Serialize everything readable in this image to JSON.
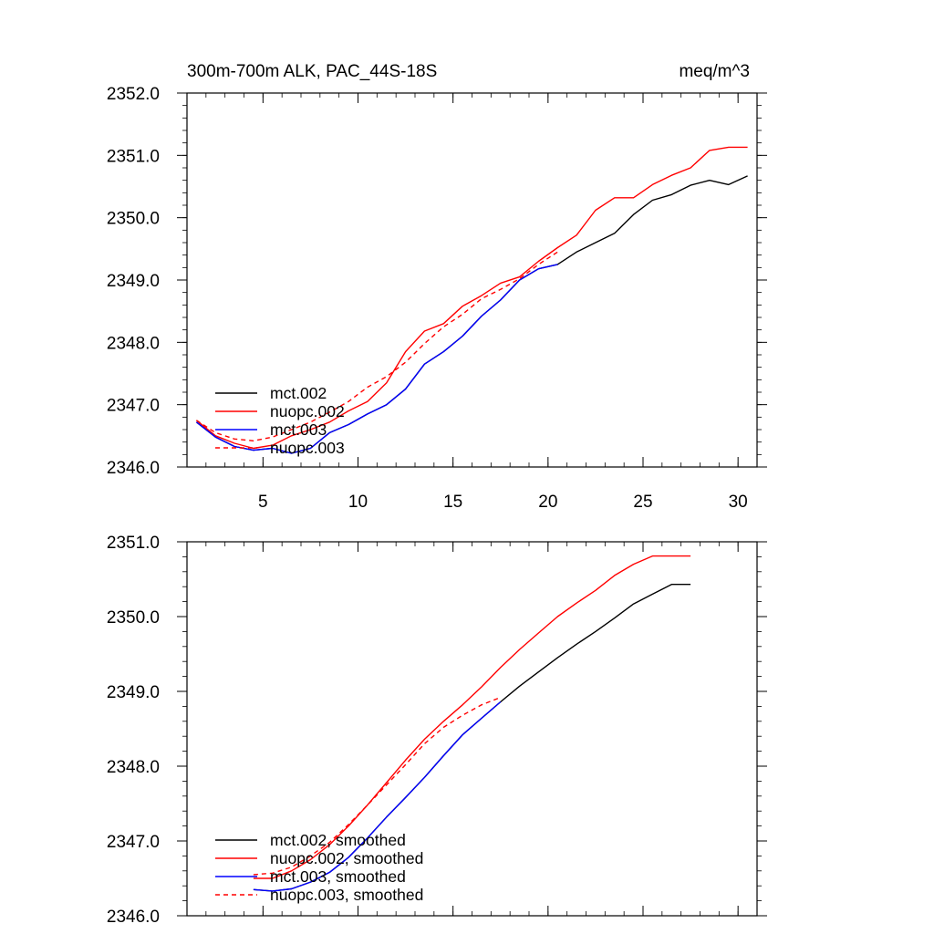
{
  "colors": {
    "mct_002": "#000000",
    "nuopc_002": "#ff0000",
    "mct_003": "#0000ff",
    "nuopc_003": "#ff0000"
  },
  "chart_data": [
    {
      "type": "line",
      "title": "300m-700m ALK, PAC_44S-18S",
      "units": "meq/m^3",
      "xlim": [
        1,
        31
      ],
      "ylim": [
        2346.0,
        2352.0
      ],
      "x_ticks": [
        5,
        10,
        15,
        20,
        25,
        30
      ],
      "x_tick_labels": [
        "5",
        "10",
        "15",
        "20",
        "25",
        "30"
      ],
      "y_ticks": [
        2346.0,
        2347.0,
        2348.0,
        2349.0,
        2350.0,
        2351.0,
        2352.0
      ],
      "y_tick_labels": [
        "2346.0",
        "2347.0",
        "2348.0",
        "2349.0",
        "2350.0",
        "2351.0",
        "2352.0"
      ],
      "legend_position": "bottom-left",
      "series": [
        {
          "name": "mct.002",
          "dashed": false,
          "x": [
            1.5,
            2.5,
            3.5,
            4.5,
            5.5,
            6.5,
            7.5,
            8.5,
            9.5,
            10.5,
            11.5,
            12.5,
            13.5,
            14.5,
            15.5,
            16.5,
            17.5,
            18.5,
            19.5,
            20.5,
            21.5,
            22.5,
            23.5,
            24.5,
            25.5,
            26.5,
            27.5,
            28.5,
            29.5,
            30.5
          ],
          "y": [
            2346.72,
            2346.48,
            2346.33,
            2346.27,
            2346.3,
            2346.22,
            2346.3,
            2346.55,
            2346.68,
            2346.85,
            2347.0,
            2347.25,
            2347.65,
            2347.85,
            2348.1,
            2348.42,
            2348.68,
            2349.0,
            2349.18,
            2349.25,
            2349.45,
            2349.6,
            2349.75,
            2350.05,
            2350.28,
            2350.37,
            2350.52,
            2350.6,
            2350.53,
            2350.67
          ]
        },
        {
          "name": "nuopc.002",
          "dashed": false,
          "x": [
            1.5,
            2.5,
            3.5,
            4.5,
            5.5,
            6.5,
            7.5,
            8.5,
            9.5,
            10.5,
            11.5,
            12.5,
            13.5,
            14.5,
            15.5,
            16.5,
            17.5,
            18.5,
            19.5,
            20.5,
            21.5,
            22.5,
            23.5,
            24.5,
            25.5,
            26.5,
            27.5,
            28.5,
            29.5,
            30.5
          ],
          "y": [
            2346.75,
            2346.5,
            2346.38,
            2346.3,
            2346.35,
            2346.5,
            2346.6,
            2346.72,
            2346.9,
            2347.05,
            2347.35,
            2347.85,
            2348.18,
            2348.3,
            2348.58,
            2348.75,
            2348.95,
            2349.05,
            2349.3,
            2349.52,
            2349.72,
            2350.12,
            2350.32,
            2350.32,
            2350.53,
            2350.68,
            2350.8,
            2351.08,
            2351.13,
            2351.13
          ]
        },
        {
          "name": "mct.003",
          "dashed": false,
          "x": [
            1.5,
            2.5,
            3.5,
            4.5,
            5.5,
            6.5,
            7.5,
            8.5,
            9.5,
            10.5,
            11.5,
            12.5,
            13.5,
            14.5,
            15.5,
            16.5,
            17.5,
            18.5,
            19.5,
            20.5
          ],
          "y": [
            2346.72,
            2346.48,
            2346.33,
            2346.27,
            2346.3,
            2346.22,
            2346.3,
            2346.55,
            2346.68,
            2346.85,
            2347.0,
            2347.25,
            2347.65,
            2347.85,
            2348.1,
            2348.42,
            2348.68,
            2349.0,
            2349.18,
            2349.25
          ]
        },
        {
          "name": "nuopc.003",
          "dashed": true,
          "x": [
            1.5,
            2.5,
            3.5,
            4.5,
            5.5,
            6.5,
            7.5,
            8.5,
            9.5,
            10.5,
            11.5,
            12.5,
            13.5,
            14.5,
            15.5,
            16.5,
            17.5,
            18.5,
            19.5,
            20.5
          ],
          "y": [
            2346.75,
            2346.55,
            2346.45,
            2346.42,
            2346.48,
            2346.6,
            2346.72,
            2346.88,
            2347.05,
            2347.28,
            2347.45,
            2347.68,
            2347.98,
            2348.25,
            2348.45,
            2348.7,
            2348.85,
            2349.02,
            2349.25,
            2349.45
          ]
        }
      ]
    },
    {
      "type": "line",
      "xlim": [
        1,
        31
      ],
      "ylim": [
        2346.0,
        2351.0
      ],
      "x_ticks": [
        5,
        10,
        15,
        20,
        25,
        30
      ],
      "y_ticks": [
        2346.0,
        2347.0,
        2348.0,
        2349.0,
        2350.0,
        2351.0
      ],
      "y_tick_labels": [
        "2346.0",
        "2347.0",
        "2348.0",
        "2349.0",
        "2350.0",
        "2351.0"
      ],
      "legend_position": "bottom-left",
      "series": [
        {
          "name": "mct.002, smoothed",
          "dashed": false,
          "x": [
            4.5,
            5.5,
            6.5,
            7.5,
            8.5,
            9.5,
            10.5,
            11.5,
            12.5,
            13.5,
            14.5,
            15.5,
            16.5,
            17.5,
            18.5,
            19.5,
            20.5,
            21.5,
            22.5,
            23.5,
            24.5,
            25.5,
            26.5,
            27.5
          ],
          "y": [
            2346.35,
            2346.33,
            2346.36,
            2346.45,
            2346.58,
            2346.78,
            2347.04,
            2347.32,
            2347.58,
            2347.85,
            2348.14,
            2348.42,
            2348.64,
            2348.86,
            2349.07,
            2349.26,
            2349.45,
            2349.63,
            2349.8,
            2349.98,
            2350.17,
            2350.3,
            2350.43,
            2350.43
          ]
        },
        {
          "name": "nuopc.002, smoothed",
          "dashed": false,
          "x": [
            4.5,
            5.5,
            6.5,
            7.5,
            8.5,
            9.5,
            10.5,
            11.5,
            12.5,
            13.5,
            14.5,
            15.5,
            16.5,
            17.5,
            18.5,
            19.5,
            20.5,
            21.5,
            22.5,
            23.5,
            24.5,
            25.5,
            26.5,
            27.5
          ],
          "y": [
            2346.5,
            2346.5,
            2346.6,
            2346.75,
            2346.95,
            2347.2,
            2347.48,
            2347.78,
            2348.08,
            2348.36,
            2348.6,
            2348.82,
            2349.06,
            2349.32,
            2349.56,
            2349.78,
            2350.0,
            2350.18,
            2350.35,
            2350.55,
            2350.7,
            2350.81,
            2350.81,
            2350.81
          ]
        },
        {
          "name": "mct.003, smoothed",
          "dashed": false,
          "x": [
            4.5,
            5.5,
            6.5,
            7.5,
            8.5,
            9.5,
            10.5,
            11.5,
            12.5,
            13.5,
            14.5,
            15.5,
            16.5,
            17.5
          ],
          "y": [
            2346.35,
            2346.33,
            2346.36,
            2346.45,
            2346.58,
            2346.78,
            2347.04,
            2347.32,
            2347.58,
            2347.85,
            2348.14,
            2348.42,
            2348.64,
            2348.86
          ]
        },
        {
          "name": "nuopc.003, smoothed",
          "dashed": true,
          "x": [
            4.5,
            5.5,
            6.5,
            7.5,
            8.5,
            9.5,
            10.5,
            11.5,
            12.5,
            13.5,
            14.5,
            15.5,
            16.5,
            17.5
          ],
          "y": [
            2346.55,
            2346.57,
            2346.65,
            2346.8,
            2346.98,
            2347.22,
            2347.48,
            2347.75,
            2348.02,
            2348.3,
            2348.52,
            2348.68,
            2348.82,
            2348.92
          ]
        }
      ]
    }
  ]
}
